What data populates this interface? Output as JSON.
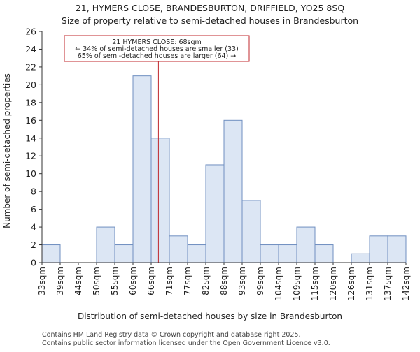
{
  "chart_data": {
    "type": "bar",
    "title": "21, HYMERS CLOSE, BRANDESBURTON, DRIFFIELD, YO25 8SQ",
    "subtitle": "Size of property relative to semi-detached houses in Brandesburton",
    "xlabel": "Distribution of semi-detached houses by size in Brandesburton",
    "ylabel": "Number of semi-detached properties",
    "ylim": [
      0,
      26
    ],
    "yticks": [
      0,
      2,
      4,
      6,
      8,
      10,
      12,
      14,
      16,
      18,
      20,
      22,
      24,
      26
    ],
    "grid": false,
    "bin_edges": [
      "33sqm",
      "39sqm",
      "44sqm",
      "50sqm",
      "55sqm",
      "60sqm",
      "66sqm",
      "71sqm",
      "77sqm",
      "82sqm",
      "88sqm",
      "93sqm",
      "99sqm",
      "104sqm",
      "109sqm",
      "115sqm",
      "120sqm",
      "126sqm",
      "131sqm",
      "137sqm",
      "142sqm"
    ],
    "values": [
      2,
      0,
      0,
      4,
      2,
      21,
      14,
      3,
      2,
      11,
      16,
      7,
      2,
      2,
      4,
      2,
      0,
      1,
      3,
      3
    ],
    "marker_value": 68,
    "annotation": {
      "line1": "21 HYMERS CLOSE: 68sqm",
      "line2": "← 34% of semi-detached houses are smaller (33)",
      "line3": "65% of semi-detached houses are larger (64) →"
    },
    "colors": {
      "bar_fill": "#dce6f4",
      "bar_stroke": "#6f8fc0",
      "marker": "#c0282d",
      "annotation_border": "#c0282d"
    }
  },
  "footer": {
    "line1": "Contains HM Land Registry data © Crown copyright and database right 2025.",
    "line2": "Contains public sector information licensed under the Open Government Licence v3.0."
  }
}
